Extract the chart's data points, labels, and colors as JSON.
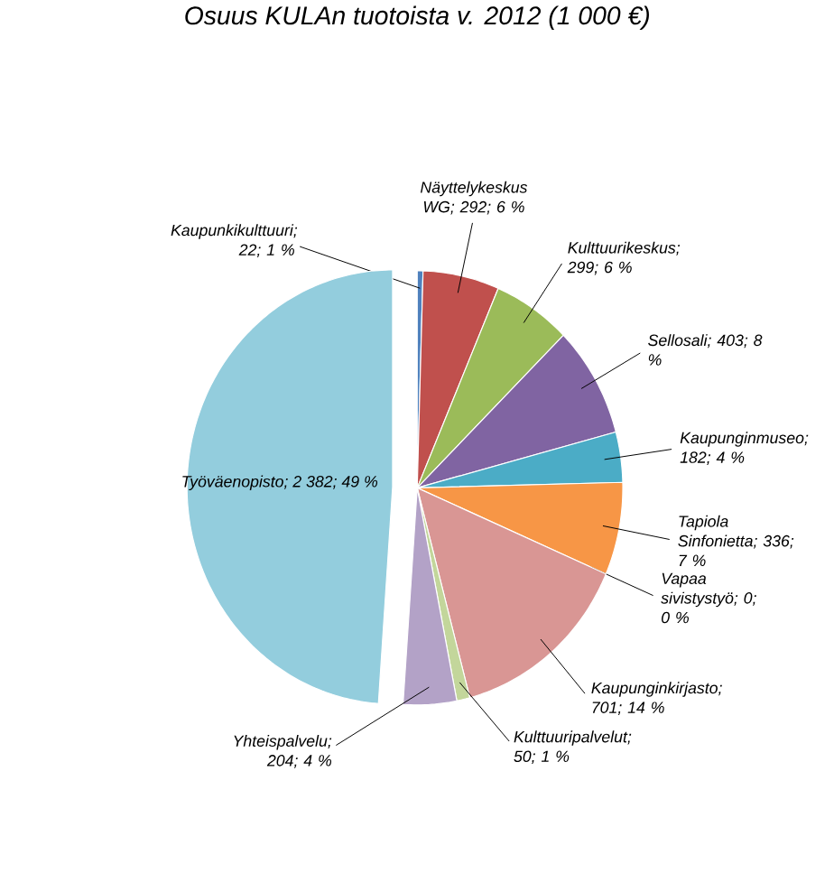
{
  "chart_data": {
    "type": "pie",
    "title": "Osuus KULAn tuotoista v. 2012 (1 000 €)",
    "categories": [
      "Kaupunkikulttuuri",
      "Näyttelykeskus WG",
      "Kulttuurikeskus",
      "Sellosali",
      "Kaupunginmuseo",
      "Tapiola Sinfonietta",
      "Vapaa sivistystyö",
      "Kaupunginkirjasto",
      "Kulttuuripalvelut",
      "Yhteispalvelu",
      "Työväenopisto"
    ],
    "values": [
      22,
      292,
      299,
      403,
      182,
      336,
      0,
      701,
      50,
      204,
      2382
    ],
    "value_labels": [
      "; 22; 1 %",
      "; 292; 6 %",
      "; 299; 6 %",
      "; 403; 8 %",
      "; 182; 4 %",
      "; 336; 7 %",
      "; 0; 0 %",
      "; 701; 14 %",
      "; 50; 1 %",
      "; 204; 4 %",
      "; 2 382; 49 %"
    ],
    "colors": [
      "#4f81bd",
      "#c0504d",
      "#9bbb59",
      "#8064a2",
      "#4bacc6",
      "#f79646",
      "#c0504d",
      "#d99694",
      "#c3d69b",
      "#b3a2c7",
      "#93cddd"
    ]
  }
}
